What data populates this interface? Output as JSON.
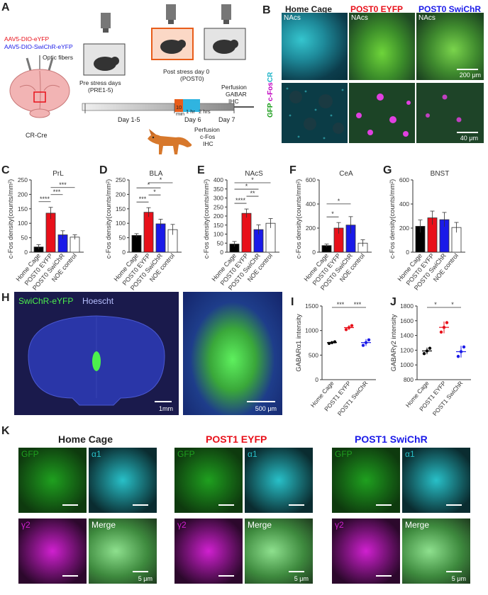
{
  "panels": [
    "A",
    "B",
    "C",
    "D",
    "E",
    "F",
    "G",
    "H",
    "I",
    "J",
    "K"
  ],
  "panelA": {
    "virus1": "AAV5-DIO-eYFP",
    "virus2": "AAV5-DIO-SwiChR-eYFP",
    "fibers": "Optic fibers",
    "mouse_line": "CR-Cre",
    "pre": "Pre stress days",
    "pre2": "(PRE1-5)",
    "post": "Post stress day 0",
    "post2": "(POST0)",
    "perf1": "Perfusion",
    "perf2": "GABAR",
    "perf3": "IHC",
    "day15": "Day 1-5",
    "day6": "Day 6",
    "day7": "Day 7",
    "pose": "POSE",
    "laser": "Laser",
    "min": "10",
    "min2": "min",
    "hr1": "1 hr",
    "hr2": "2 hrs",
    "perfB1": "Perfusion",
    "perfB2": "c-Fos",
    "perfB3": "IHC"
  },
  "panelB": {
    "col1": "Home Cage",
    "col2": "POST0 EYFP",
    "col3": "POST0 SwiChR",
    "region": "NAcs",
    "stain1": "GFP",
    "stain2": "c-Fos",
    "stain3": "CR",
    "scale1": "200 μm",
    "scale2": "40 μm"
  },
  "bar_ylabel": "c-Fos density(counts/mm²)",
  "groups": [
    "Home Cage",
    "POST0 EYFP",
    "POST0 SwiChR",
    "NOE control"
  ],
  "colors": {
    "homecage": "#000000",
    "eyfp": "#e8101a",
    "swichr": "#1a1ae8",
    "noe": "#ffffff"
  },
  "chart_data": [
    {
      "type": "bar",
      "panel": "C",
      "title": "PrL",
      "categories": [
        "Home Cage",
        "POST0 EYFP",
        "POST0 SwiChR",
        "NOE control"
      ],
      "values": [
        18,
        135,
        60,
        52
      ],
      "errors": [
        8,
        20,
        14,
        8
      ],
      "ylim": [
        0,
        250
      ],
      "yticks": [
        0,
        50,
        100,
        150,
        200,
        250
      ],
      "ylabel": "c-Fos density(counts/mm²)",
      "sig": [
        {
          "a": 0,
          "b": 1,
          "label": "****"
        },
        {
          "a": 1,
          "b": 2,
          "label": "***"
        },
        {
          "a": 1,
          "b": 3,
          "label": "***"
        }
      ]
    },
    {
      "type": "bar",
      "panel": "D",
      "title": "BLA",
      "categories": [
        "Home Cage",
        "POST0 EYFP",
        "POST0 SwiChR",
        "NOE control"
      ],
      "values": [
        58,
        138,
        98,
        78
      ],
      "errors": [
        6,
        16,
        16,
        18
      ],
      "ylim": [
        0,
        250
      ],
      "yticks": [
        0,
        50,
        100,
        150,
        200,
        250
      ],
      "ylabel": "c-Fos density(counts/mm²)",
      "sig": [
        {
          "a": 0,
          "b": 1,
          "label": "***"
        },
        {
          "a": 1,
          "b": 2,
          "label": "*"
        },
        {
          "a": 0,
          "b": 2,
          "label": "*"
        },
        {
          "a": 1,
          "b": 3,
          "label": "*"
        }
      ]
    },
    {
      "type": "bar",
      "panel": "E",
      "title": "NAcS",
      "categories": [
        "Home Cage",
        "POST0 EYFP",
        "POST0 SwiChR",
        "NOE control"
      ],
      "values": [
        45,
        215,
        125,
        160
      ],
      "errors": [
        14,
        24,
        26,
        26
      ],
      "ylim": [
        0,
        400
      ],
      "yticks": [
        0,
        50,
        100,
        150,
        200,
        250,
        300,
        350,
        400
      ],
      "ylabel": "c-Fos density(counts/mm²)",
      "sig": [
        {
          "a": 0,
          "b": 1,
          "label": "****"
        },
        {
          "a": 1,
          "b": 2,
          "label": "**"
        },
        {
          "a": 0,
          "b": 2,
          "label": "*"
        },
        {
          "a": 0,
          "b": 3,
          "label": "*"
        }
      ]
    },
    {
      "type": "bar",
      "panel": "F",
      "title": "CeA",
      "categories": [
        "Home Cage",
        "POST0 EYFP",
        "POST0 SwiChR",
        "NOE control"
      ],
      "values": [
        55,
        200,
        225,
        75
      ],
      "errors": [
        12,
        46,
        70,
        28
      ],
      "ylim": [
        0,
        600
      ],
      "yticks": [
        0,
        200,
        400,
        600
      ],
      "ylabel": "c-Fos density(counts/mm²)",
      "sig": [
        {
          "a": 0,
          "b": 1,
          "label": "*"
        },
        {
          "a": 0,
          "b": 2,
          "label": "*"
        }
      ]
    },
    {
      "type": "bar",
      "panel": "G",
      "title": "BNST",
      "categories": [
        "Home Cage",
        "POST0 EYFP",
        "POST0 SwiChR",
        "NOE control"
      ],
      "values": [
        215,
        285,
        270,
        205
      ],
      "errors": [
        52,
        56,
        60,
        42
      ],
      "ylim": [
        0,
        600
      ],
      "yticks": [
        0,
        200,
        400,
        600
      ],
      "ylabel": "c-Fos density(counts/mm²)",
      "sig": []
    },
    {
      "type": "scatter",
      "panel": "I",
      "ylabel": "GABARα1 intensity",
      "categories": [
        "Home Cage",
        "POST1 EYFP",
        "POST1 SwiChR"
      ],
      "means": [
        755,
        1060,
        755
      ],
      "errors": [
        20,
        50,
        70
      ],
      "ylim": [
        0,
        1500
      ],
      "yticks": [
        0,
        500,
        1000,
        1500
      ],
      "sig": [
        {
          "a": 0,
          "b": 1,
          "label": "***"
        },
        {
          "a": 1,
          "b": 2,
          "label": "***"
        }
      ]
    },
    {
      "type": "scatter",
      "panel": "J",
      "ylabel": "GABARγ2 intensity",
      "categories": [
        "Home Cage",
        "POST1 EYFP",
        "POST1 SwiChR"
      ],
      "means": [
        1190,
        1510,
        1180
      ],
      "errors": [
        45,
        80,
        80
      ],
      "ylim": [
        800,
        1800
      ],
      "yticks": [
        800,
        1000,
        1200,
        1400,
        1600,
        1800
      ],
      "sig": [
        {
          "a": 0,
          "b": 1,
          "label": "*"
        },
        {
          "a": 1,
          "b": 2,
          "label": "*"
        }
      ]
    }
  ],
  "panelH": {
    "stain1": "SwiChR-eYFP",
    "stain2": "Hoescht",
    "scale1": "1mm",
    "scale2": "500 μm"
  },
  "panelK": {
    "col1": "Home Cage",
    "col2": "POST1 EYFP",
    "col3": "POST1 SwiChR",
    "c1": "GFP",
    "c2": "α1",
    "c3": "γ2",
    "c4": "Merge",
    "scale": "5 μm"
  }
}
